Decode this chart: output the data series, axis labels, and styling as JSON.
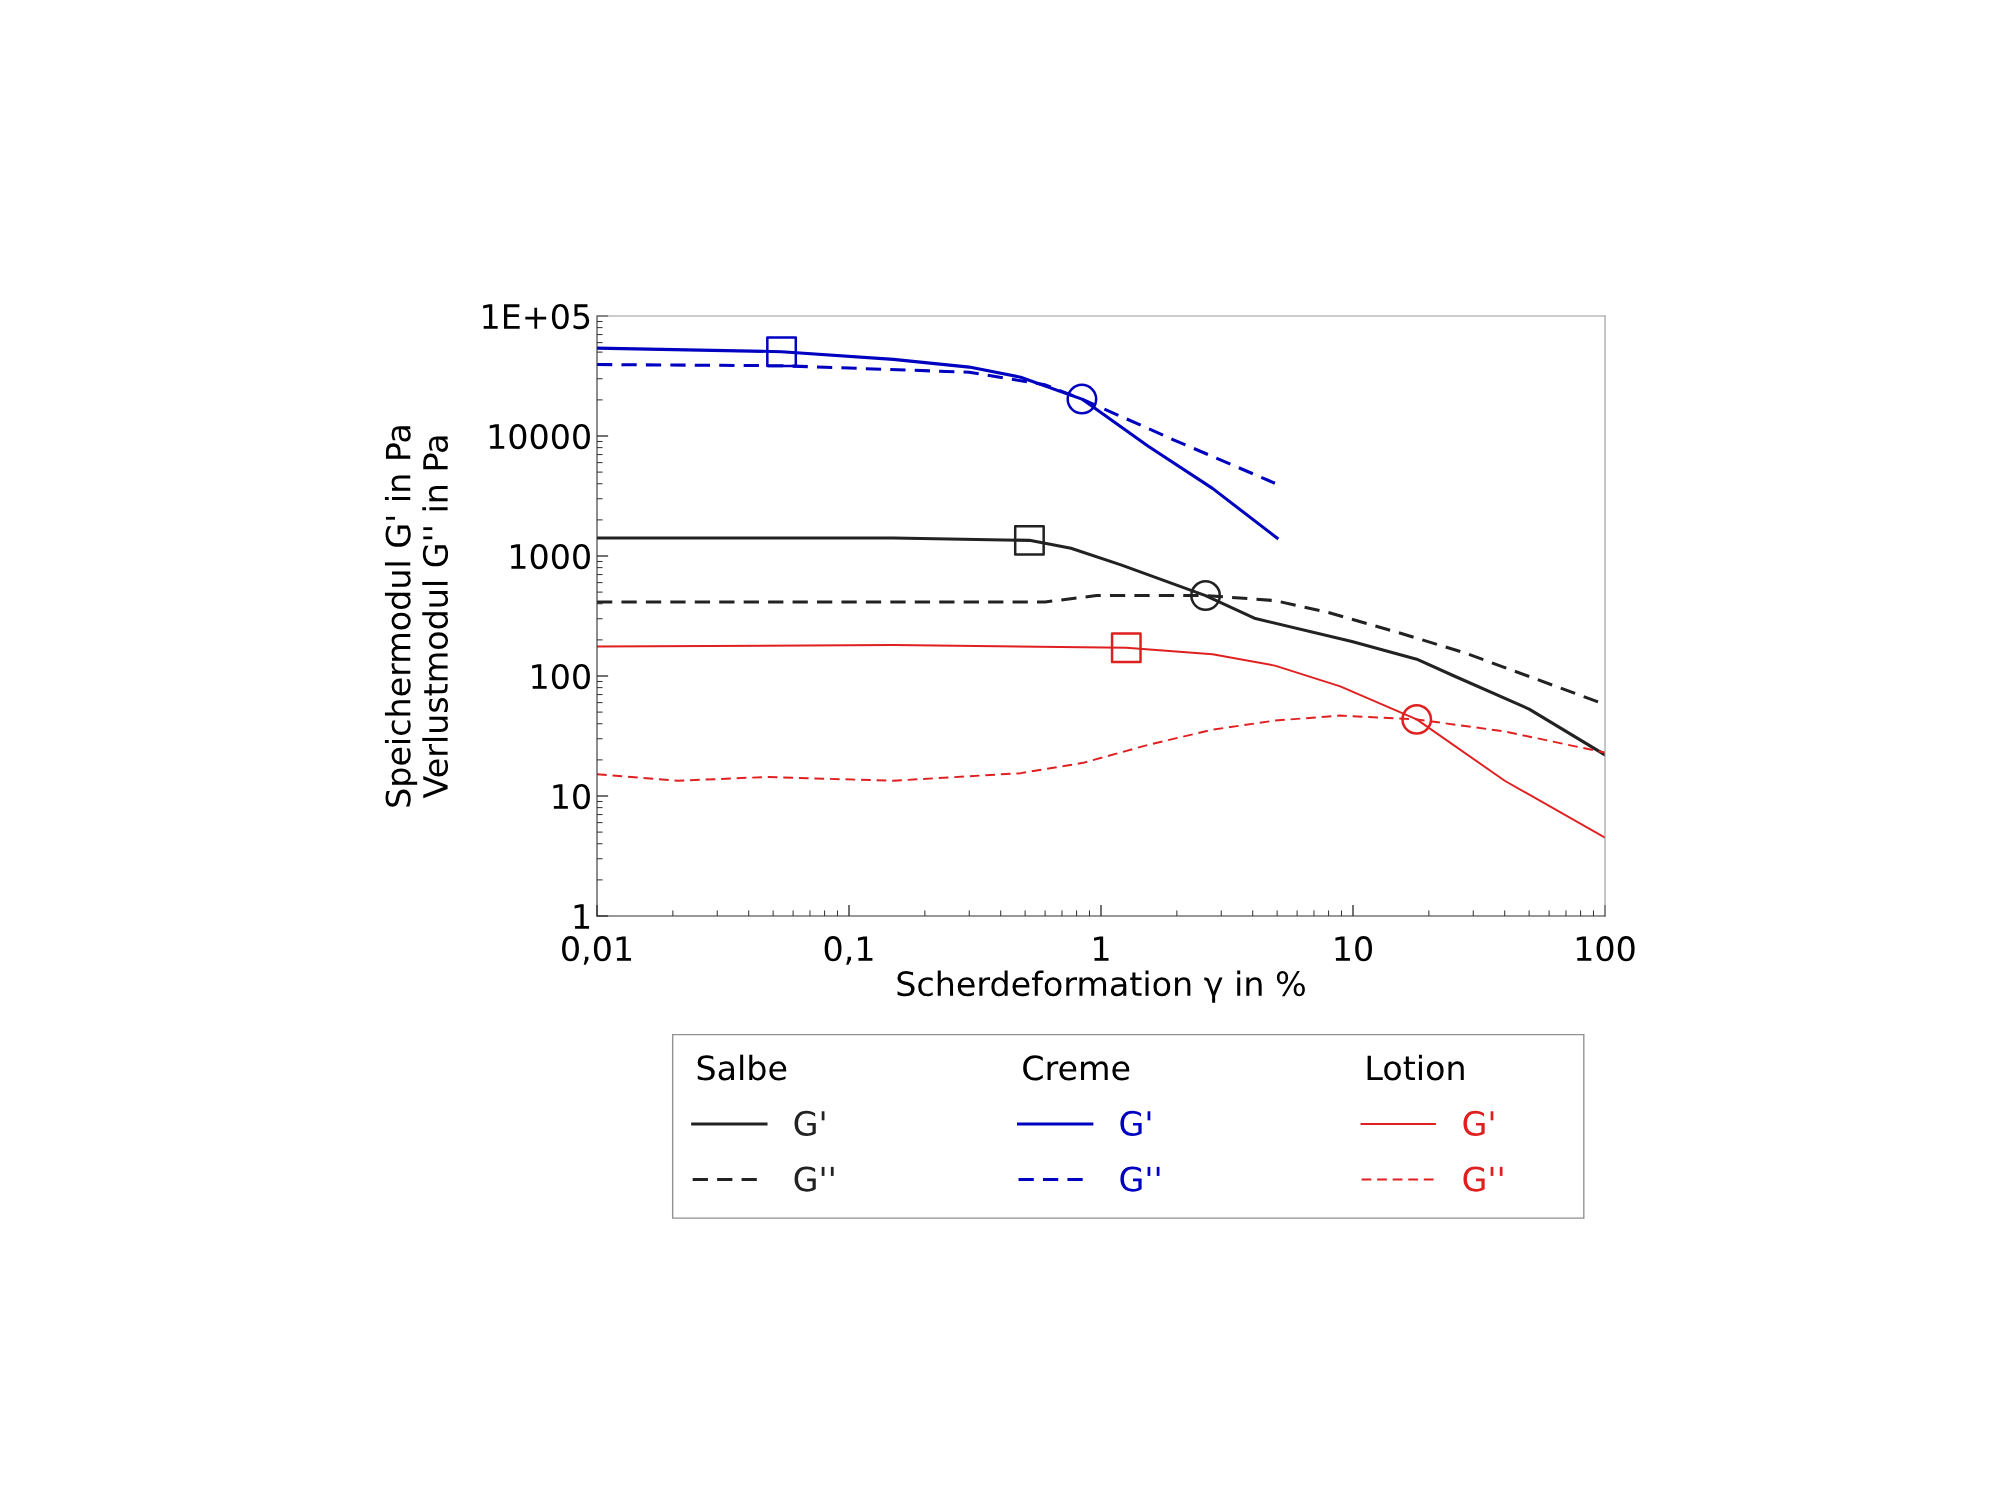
{
  "chart_data": {
    "type": "line",
    "xlabel": "Scherdeformation γ in %",
    "ylabel": "Speichermodul G' in Pa\nVerlustmodul G'' in Pa",
    "log": "xy",
    "xlim": [
      0.01,
      100
    ],
    "ylim": [
      1,
      100000
    ],
    "xticks": [
      {
        "value": 0.01,
        "label": "0,01"
      },
      {
        "value": 0.1,
        "label": "0,1"
      },
      1,
      10,
      100
    ],
    "yticks": [
      1,
      10,
      100,
      1000,
      10000,
      {
        "value": 100000,
        "label": "1E+05"
      }
    ],
    "grid": false,
    "legend": "bottom",
    "annotations": [
      "Salbe",
      "Creme",
      "Lotion"
    ],
    "series": [
      {
        "name": "G'",
        "color": "#222222",
        "line_style": "solid",
        "x": [
          0.01,
          0.15,
          0.52,
          0.76,
          1.2,
          2.6,
          4.1,
          9.9,
          17.9,
          25.2,
          50,
          100
        ],
        "values": [
          1410,
          1410,
          1350,
          1160,
          843,
          468,
          301,
          194,
          138,
          100,
          53,
          22
        ]
      },
      {
        "name": "G''",
        "color": "#222222",
        "line_style": "dashed",
        "x": [
          0.01,
          0.6,
          0.96,
          2.6,
          4.9,
          7.9,
          15.8,
          28,
          100
        ],
        "values": [
          414,
          414,
          468,
          468,
          425,
          340,
          224,
          155,
          58
        ]
      },
      {
        "name": "G'",
        "color": "#0000c0",
        "line_style": "solid",
        "x": [
          0.01,
          0.054,
          0.15,
          0.3,
          0.48,
          0.84,
          1.54,
          2.77,
          5.0
        ],
        "values": [
          54000,
          50400,
          43500,
          37500,
          30900,
          20300,
          8220,
          3660,
          1410
        ]
      },
      {
        "name": "G''",
        "color": "#0000c0",
        "line_style": "dashed",
        "x": [
          0.01,
          0.054,
          0.3,
          0.6,
          0.84,
          1.94,
          4.9
        ],
        "values": [
          39400,
          38500,
          34000,
          26700,
          20300,
          9300,
          4040
        ]
      },
      {
        "name": "G'",
        "color": "#e02020",
        "line_style": "solid",
        "x": [
          0.01,
          0.15,
          1.26,
          2.77,
          4.9,
          8.9,
          17.9,
          40,
          100
        ],
        "values": [
          176,
          181,
          172,
          152,
          122,
          82,
          43.5,
          13.4,
          4.5
        ]
      },
      {
        "name": "G''",
        "color": "#e02020",
        "line_style": "dashed",
        "x": [
          0.01,
          0.021,
          0.047,
          0.15,
          0.48,
          0.85,
          1.54,
          2.77,
          4.9,
          8.9,
          17.9,
          40,
          100
        ],
        "values": [
          15.2,
          13.4,
          14.4,
          13.4,
          15.5,
          18.9,
          26.7,
          35.7,
          42.5,
          46.8,
          43.5,
          34.5,
          23
        ]
      },
      {
        "type": "scatter",
        "marker": "square",
        "x": [
          0.054,
          0.52,
          1.26
        ],
        "values": [
          50400,
          1350,
          172
        ],
        "colors": [
          "#0000c0",
          "#222222",
          "#e02020"
        ]
      },
      {
        "type": "scatter",
        "marker": "circle",
        "x": [
          0.84,
          2.6,
          17.9
        ],
        "values": [
          20300,
          468,
          43.5
        ],
        "colors": [
          "#0000c0",
          "#222222",
          "#e02020"
        ]
      }
    ]
  }
}
